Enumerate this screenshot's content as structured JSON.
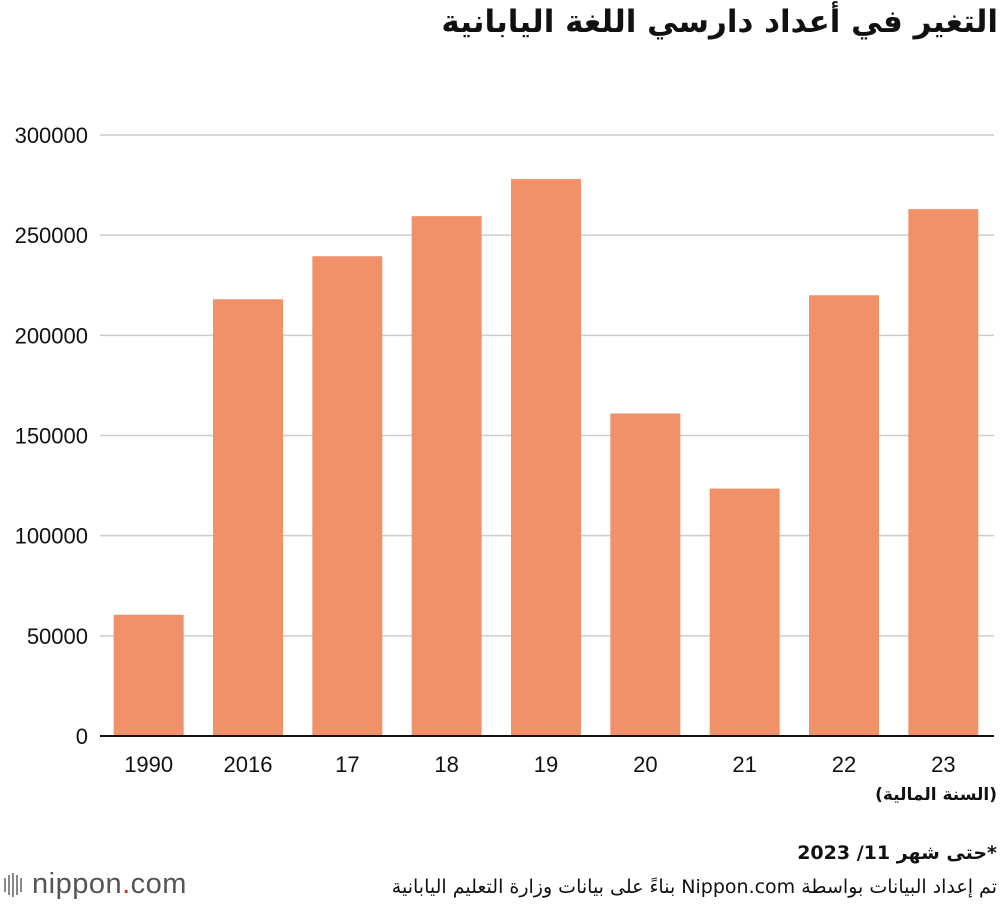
{
  "title": "التغير في أعداد دارسي اللغة اليابانية",
  "chart_data": {
    "type": "bar",
    "title": "التغير في أعداد دارسي اللغة اليابانية",
    "categories": [
      "1990",
      "2016",
      "17",
      "18",
      "19",
      "20",
      "21",
      "22",
      "23"
    ],
    "values": [
      60500,
      218000,
      239500,
      259500,
      278000,
      161000,
      123500,
      220000,
      263000
    ],
    "ylim": [
      0,
      300000
    ],
    "yticks": [
      0,
      50000,
      100000,
      150000,
      200000,
      250000,
      300000
    ],
    "xlabel": "(السنة المالية)",
    "ylabel": "",
    "grid": true,
    "bar_color": "#f0916a",
    "grid_color": "#cccccc"
  },
  "note": "*حتى شهر 11/ 2023",
  "source": "تم إعداد البيانات بواسطة Nippon.com بناءً على بيانات وزارة التعليم اليابانية",
  "logo": {
    "text_main": "nippon",
    "dot": ".",
    "text_end": "com",
    "icon": "nippon-wave-icon"
  }
}
